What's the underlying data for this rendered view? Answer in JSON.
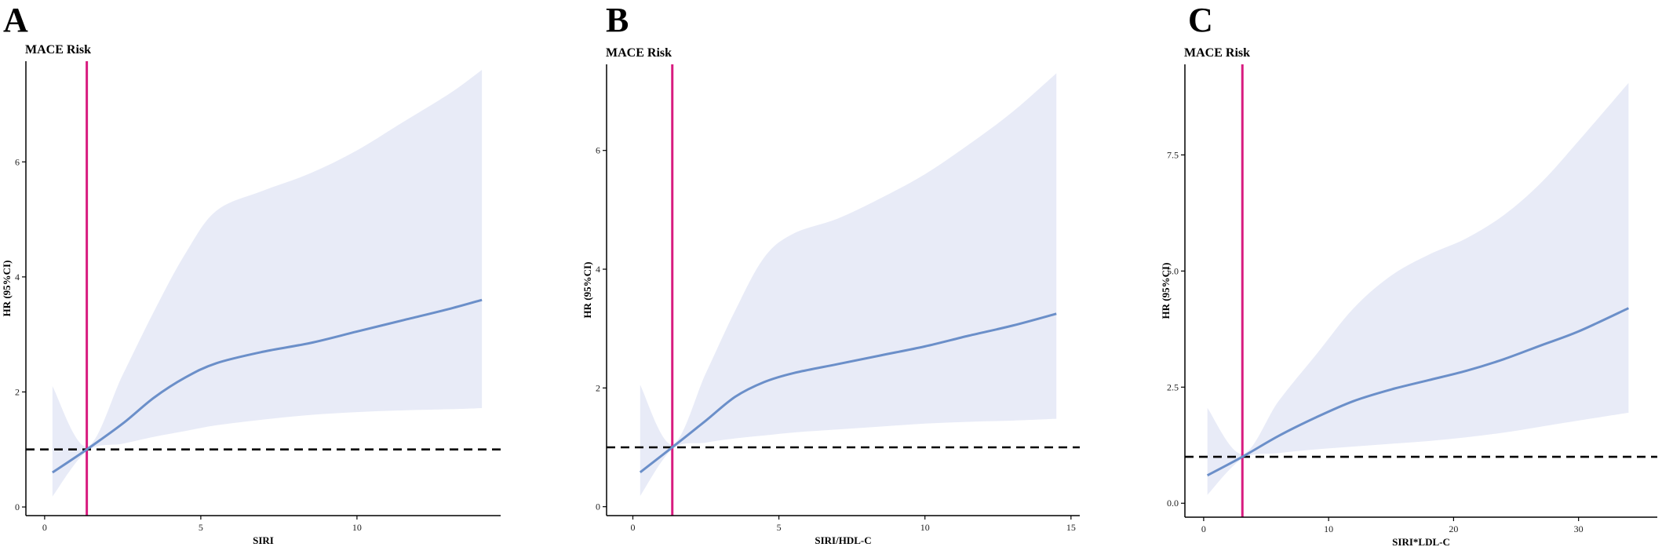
{
  "colors": {
    "band": "#e8ebf7",
    "curve": "#6b8fc9",
    "reference_vertical": "#d81b7f",
    "reference_horizontal": "#000000",
    "axis": "#000000"
  },
  "chart_data": [
    {
      "type": "line",
      "panel_letter": "A",
      "title": "MACE Risk",
      "xlabel": "SIRI",
      "ylabel": "HR (95%CI)",
      "xlim": [
        -0.6,
        14.6
      ],
      "ylim": [
        -0.15,
        7.75
      ],
      "xticks": [
        0,
        5,
        10
      ],
      "xtick_labels": [
        "0",
        "5",
        "10"
      ],
      "yticks": [
        0,
        2,
        4,
        6
      ],
      "ytick_labels": [
        "0",
        "2",
        "4",
        "6"
      ],
      "ref_x": 1.35,
      "ref_y": 1,
      "grid": false,
      "series": [
        {
          "x": [
            0.25,
            1.35,
            2.5,
            3.5,
            4.5,
            5.5,
            7,
            8.5,
            10,
            11.5,
            13,
            14
          ],
          "y": [
            0.6,
            1.0,
            1.45,
            1.9,
            2.25,
            2.5,
            2.7,
            2.85,
            3.05,
            3.25,
            3.45,
            3.6
          ],
          "lower": [
            0.18,
            0.97,
            1.1,
            1.22,
            1.32,
            1.42,
            1.52,
            1.6,
            1.65,
            1.68,
            1.7,
            1.72
          ],
          "upper": [
            2.1,
            1.05,
            2.3,
            3.4,
            4.4,
            5.15,
            5.5,
            5.8,
            6.2,
            6.7,
            7.2,
            7.6
          ]
        }
      ]
    },
    {
      "type": "line",
      "panel_letter": "B",
      "title": "MACE Risk",
      "xlabel": "SIRI/HDL-C",
      "ylabel": "HR (95%CI)",
      "xlim": [
        -0.9,
        15.3
      ],
      "ylim": [
        -0.15,
        7.45
      ],
      "xticks": [
        0,
        5,
        10,
        15
      ],
      "xtick_labels": [
        "0",
        "5",
        "10",
        "15"
      ],
      "yticks": [
        0,
        2,
        4,
        6
      ],
      "ytick_labels": [
        "0",
        "2",
        "4",
        "6"
      ],
      "ref_x": 1.35,
      "ref_y": 1,
      "grid": false,
      "series": [
        {
          "x": [
            0.25,
            1.35,
            2.5,
            3.5,
            4.5,
            5.5,
            7,
            8.5,
            10,
            11.5,
            13,
            14.5
          ],
          "y": [
            0.58,
            1.0,
            1.45,
            1.85,
            2.1,
            2.25,
            2.4,
            2.55,
            2.7,
            2.88,
            3.05,
            3.25
          ],
          "lower": [
            0.18,
            0.97,
            1.08,
            1.15,
            1.2,
            1.25,
            1.3,
            1.35,
            1.4,
            1.43,
            1.45,
            1.48
          ],
          "upper": [
            2.05,
            1.05,
            2.25,
            3.3,
            4.2,
            4.6,
            4.85,
            5.2,
            5.6,
            6.1,
            6.65,
            7.3
          ]
        }
      ]
    },
    {
      "type": "line",
      "panel_letter": "C",
      "title": "MACE Risk",
      "xlabel": "SIRI*LDL-C",
      "ylabel": "HR (95%CI)",
      "xlim": [
        -1.5,
        36.3
      ],
      "ylim": [
        -0.3,
        9.45
      ],
      "xticks": [
        0,
        10,
        20,
        30
      ],
      "xtick_labels": [
        "0",
        "10",
        "20",
        "30"
      ],
      "yticks": [
        0,
        2.5,
        5,
        7.5
      ],
      "ytick_labels": [
        "0.0",
        "2.5",
        "5.0",
        "7.5"
      ],
      "ref_x": 3.1,
      "ref_y": 1,
      "grid": false,
      "series": [
        {
          "x": [
            0.3,
            3.1,
            6,
            9,
            12,
            15,
            18,
            21,
            24,
            27,
            30,
            34
          ],
          "y": [
            0.6,
            1.0,
            1.45,
            1.85,
            2.2,
            2.45,
            2.65,
            2.85,
            3.1,
            3.4,
            3.7,
            4.2
          ],
          "lower": [
            0.18,
            0.96,
            1.08,
            1.16,
            1.22,
            1.28,
            1.34,
            1.42,
            1.52,
            1.65,
            1.78,
            1.95
          ],
          "upper": [
            2.05,
            1.06,
            2.2,
            3.2,
            4.2,
            4.9,
            5.35,
            5.7,
            6.2,
            6.9,
            7.8,
            9.05
          ]
        }
      ]
    }
  ]
}
